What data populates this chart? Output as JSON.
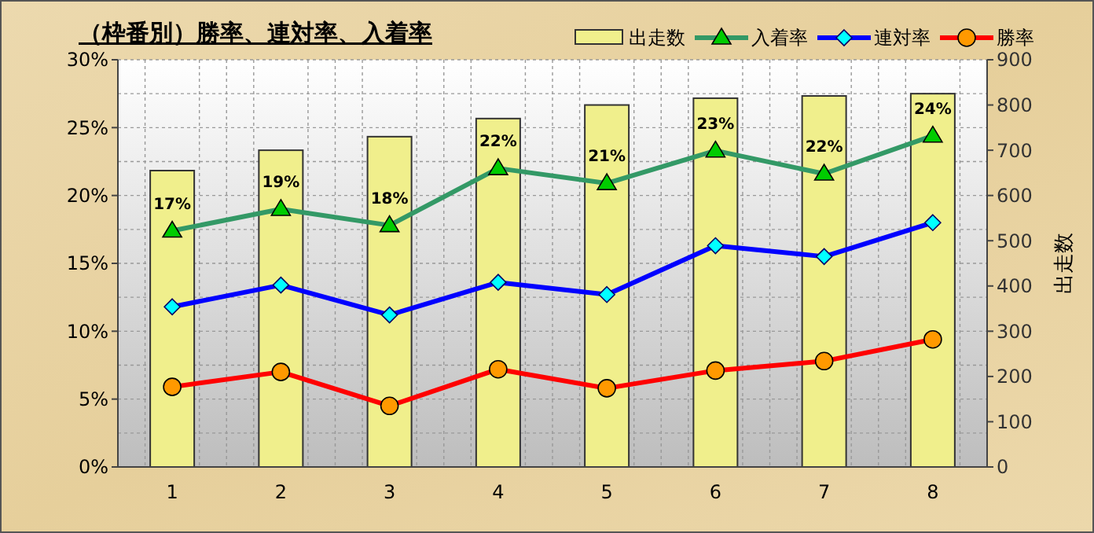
{
  "chart_data": {
    "type": "line",
    "title": "（枠番別）勝率、連対率、入着率",
    "y2label": "出走数",
    "categories": [
      "1",
      "2",
      "3",
      "4",
      "5",
      "6",
      "7",
      "8"
    ],
    "ylim": [
      0,
      30
    ],
    "yticks": [
      {
        "value": 0,
        "label": "0%"
      },
      {
        "value": 5,
        "label": "5%"
      },
      {
        "value": 10,
        "label": "10%"
      },
      {
        "value": 15,
        "label": "15%"
      },
      {
        "value": 20,
        "label": "20%"
      },
      {
        "value": 25,
        "label": "25%"
      },
      {
        "value": 30,
        "label": "30%"
      }
    ],
    "y2lim": [
      0,
      900
    ],
    "y2ticks": [
      0,
      100,
      200,
      300,
      400,
      500,
      600,
      700,
      800,
      900
    ],
    "grid": true,
    "legend": "top right",
    "series": [
      {
        "name": "出走数",
        "type": "bar",
        "axis": "y2",
        "color": "#f0ef8c",
        "values": [
          655,
          700,
          730,
          770,
          800,
          815,
          820,
          825
        ]
      },
      {
        "name": "入着率",
        "marker": "triangle",
        "color": "#339966",
        "values": [
          17.4,
          19.0,
          17.8,
          22.0,
          20.9,
          23.3,
          21.6,
          24.4
        ],
        "value_labels": [
          "17%",
          "19%",
          "18%",
          "22%",
          "21%",
          "23%",
          "22%",
          "24%"
        ]
      },
      {
        "name": "連対率",
        "marker": "diamond",
        "color": "#0000ff",
        "values": [
          11.8,
          13.4,
          11.2,
          13.6,
          12.7,
          16.3,
          15.5,
          18.0
        ]
      },
      {
        "name": "勝率",
        "marker": "circle",
        "color": "#ff0000",
        "values": [
          5.9,
          7.0,
          4.5,
          7.2,
          5.8,
          7.1,
          7.8,
          9.4
        ]
      }
    ]
  }
}
